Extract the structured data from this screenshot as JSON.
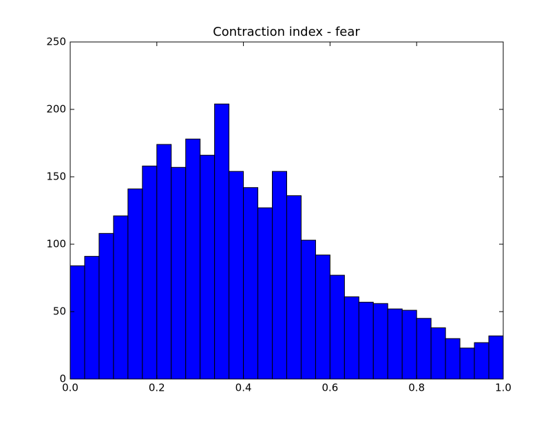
{
  "chart_data": {
    "type": "histogram",
    "title": "Contraction index - fear",
    "bins": [
      0,
      0.03333,
      0.06667,
      0.1,
      0.13333,
      0.16667,
      0.2,
      0.23333,
      0.26667,
      0.3,
      0.33333,
      0.36667,
      0.4,
      0.43333,
      0.46667,
      0.5,
      0.53333,
      0.56667,
      0.6,
      0.63333,
      0.66667,
      0.7,
      0.73333,
      0.76667,
      0.8,
      0.83333,
      0.86667,
      0.9,
      0.93333,
      0.96667,
      1
    ],
    "values": [
      84,
      91,
      108,
      121,
      141,
      158,
      174,
      157,
      178,
      166,
      204,
      154,
      142,
      127,
      154,
      136,
      103,
      92,
      77,
      61,
      57,
      56,
      52,
      51,
      45,
      38,
      30,
      23,
      27,
      32
    ],
    "color": "#0000ff",
    "xlim": [
      0,
      1
    ],
    "ylim": [
      0,
      250
    ],
    "xticks": [
      {
        "value": 0,
        "label": "0.0"
      },
      {
        "value": 0.2,
        "label": "0.2"
      },
      {
        "value": 0.4,
        "label": "0.4"
      },
      {
        "value": 0.6,
        "label": "0.6"
      },
      {
        "value": 0.8,
        "label": "0.8"
      },
      {
        "value": 1,
        "label": "1.0"
      }
    ],
    "yticks": [
      0,
      50,
      100,
      150,
      200,
      250
    ]
  }
}
